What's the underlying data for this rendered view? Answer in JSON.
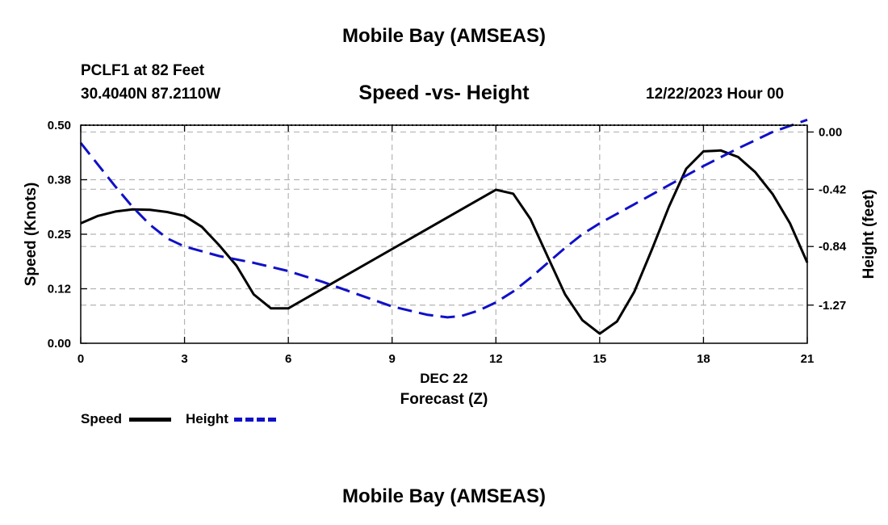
{
  "header": {
    "title": "Mobile Bay (AMSEAS)",
    "station": "PCLF1 at 82 Feet",
    "coords": "30.4040N  87.2110W",
    "subtitle": "Speed -vs- Height",
    "datetime": "12/22/2023 Hour 00"
  },
  "footer": {
    "title": "Mobile Bay (AMSEAS)"
  },
  "legend": {
    "speed_label": "Speed",
    "height_label": "Height"
  },
  "colors": {
    "speed": "#000000",
    "height": "#1010c8",
    "grid": "#b4b4b4"
  },
  "chart_data": {
    "type": "line",
    "xlabel": "Forecast (Z)",
    "xlabel_date": "DEC 22",
    "ylabel_left": "Speed (Knots)",
    "ylabel_right": "Height (feet)",
    "xlim": [
      0,
      21
    ],
    "ylim_left": [
      0,
      0.5
    ],
    "ylim_right": [
      -1.55,
      0.05
    ],
    "x_ticks": [
      0,
      3,
      6,
      9,
      12,
      15,
      18,
      21
    ],
    "x_tick_labels": [
      "0",
      "3",
      "6",
      "9",
      "12",
      "15",
      "18",
      "21"
    ],
    "y_left_ticks": [
      0,
      0.125,
      0.25,
      0.375,
      0.5
    ],
    "y_left_tick_labels": [
      "0.00",
      "0.12",
      "0.25",
      "0.38",
      "0.50"
    ],
    "y_right_ticks": [
      0,
      -0.42,
      -0.84,
      -1.27
    ],
    "y_right_tick_labels": [
      "0.00",
      "-0.42",
      "-0.84",
      "-1.27"
    ],
    "grid": true,
    "legend_position": "bottom-left",
    "series": [
      {
        "name": "Speed",
        "axis": "left",
        "style": "solid",
        "x": [
          0,
          0.5,
          1,
          1.5,
          2,
          2.5,
          3,
          3.5,
          4,
          4.5,
          5,
          5.5,
          6,
          12,
          12.5,
          13,
          13.5,
          14,
          14.5,
          15,
          15.5,
          16,
          16.5,
          17,
          17.5,
          18,
          18.5,
          19,
          19.5,
          20,
          20.5,
          21
        ],
        "values": [
          0.275,
          0.292,
          0.302,
          0.307,
          0.306,
          0.301,
          0.292,
          0.267,
          0.225,
          0.178,
          0.112,
          0.08,
          0.08,
          0.352,
          0.343,
          0.285,
          0.198,
          0.112,
          0.053,
          0.022,
          0.05,
          0.118,
          0.213,
          0.313,
          0.4,
          0.44,
          0.442,
          0.427,
          0.392,
          0.342,
          0.275,
          0.185
        ]
      },
      {
        "name": "Height",
        "axis": "right",
        "style": "dashed",
        "x": [
          0,
          0.5,
          1,
          1.5,
          2,
          2.5,
          3,
          4,
          5,
          6,
          7,
          8,
          9,
          10,
          10.6,
          11,
          11.5,
          12,
          12.5,
          13,
          13.5,
          14,
          14.5,
          15,
          16,
          17,
          18,
          19,
          20,
          21
        ],
        "values": [
          -0.08,
          -0.24,
          -0.4,
          -0.55,
          -0.68,
          -0.78,
          -0.84,
          -0.91,
          -0.96,
          -1.02,
          -1.1,
          -1.19,
          -1.28,
          -1.34,
          -1.36,
          -1.35,
          -1.31,
          -1.25,
          -1.17,
          -1.07,
          -0.96,
          -0.85,
          -0.75,
          -0.67,
          -0.53,
          -0.39,
          -0.25,
          -0.12,
          0.0,
          0.09
        ]
      }
    ]
  }
}
